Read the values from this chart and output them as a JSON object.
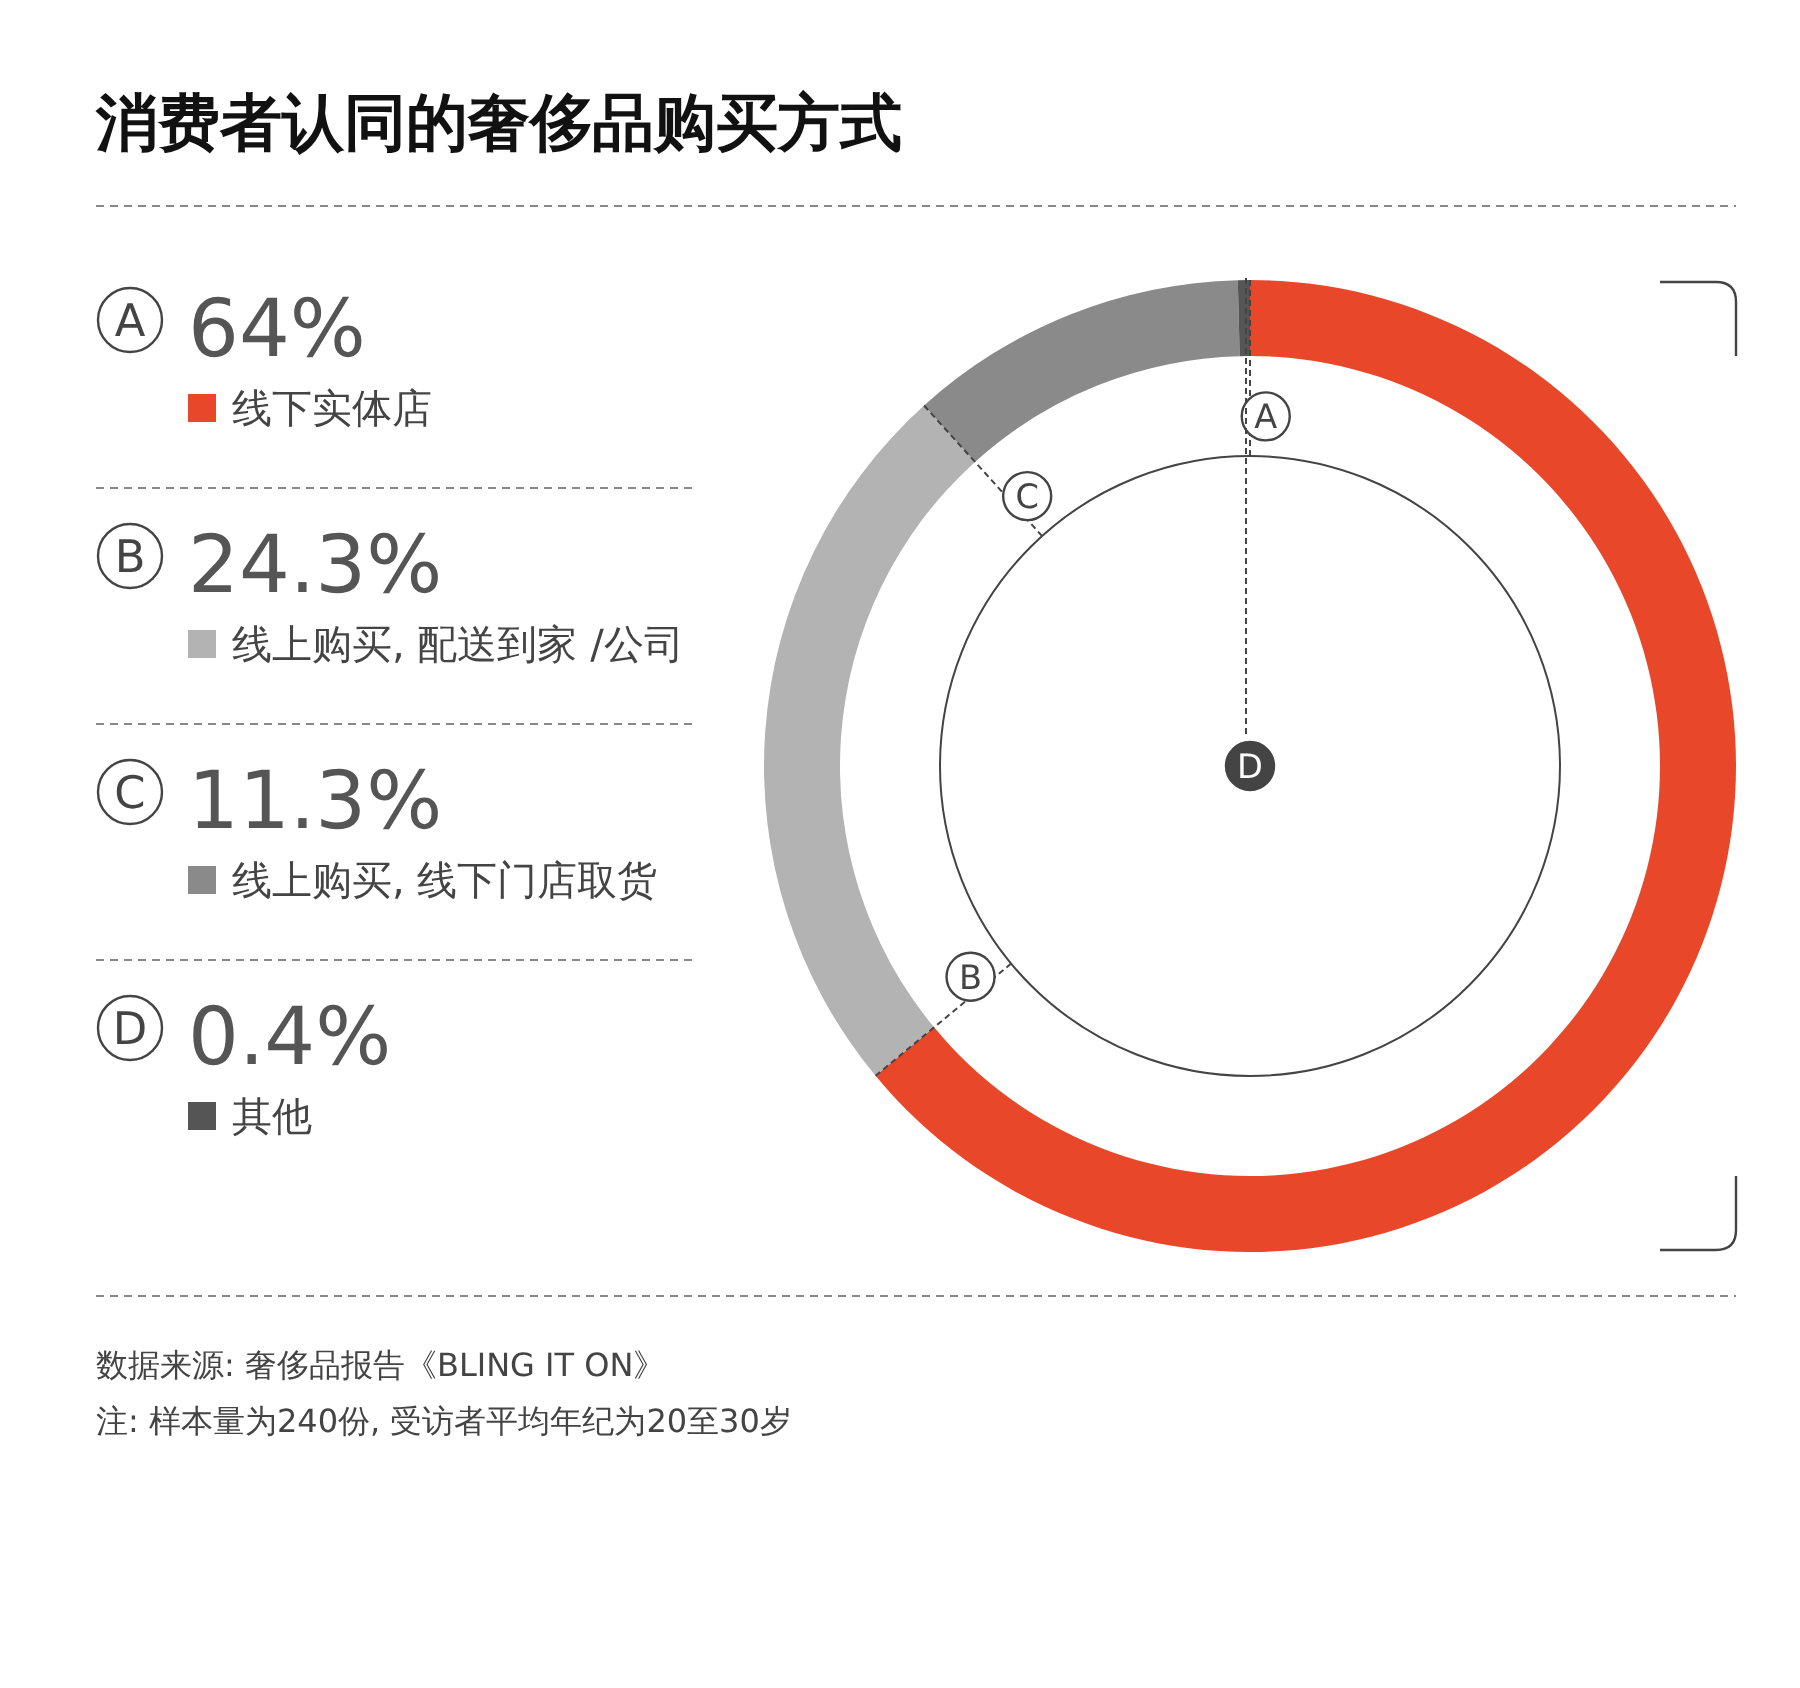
{
  "chart_data": {
    "type": "donut",
    "title": "消费者认同的奢侈品购买方式",
    "categories": [
      "线下实体店",
      "线上购买, 配送到家 /公司",
      "线上购买, 线下门店取货",
      "其他"
    ],
    "values": [
      64,
      24.3,
      11.3,
      0.4
    ],
    "value_labels": [
      "64%",
      "24.3%",
      "11.3%",
      "0.4%"
    ],
    "colors": [
      "#e8472a",
      "#b3b3b3",
      "#8a8a8a",
      "#555555"
    ],
    "legend": "left",
    "annotations": [
      "A",
      "B",
      "C",
      "D",
      "数据来源: 奢侈品报告《BLING IT ON》",
      "注: 样本量为240份, 受访者平均年纪为20至30岁"
    ]
  }
}
